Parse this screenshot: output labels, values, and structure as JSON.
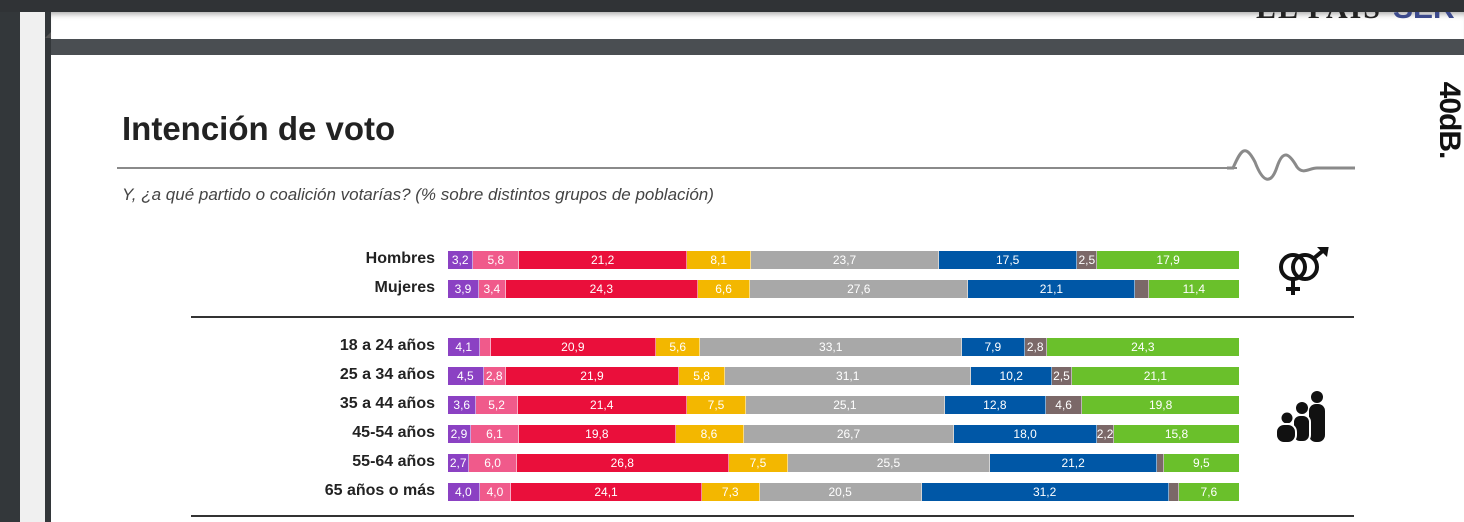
{
  "viewer": {
    "prev_page_logos": [
      "EL PAÍS",
      "SER"
    ]
  },
  "header": {
    "title": "Intención de voto",
    "subtitle": "Y, ¿a qué partido o coalición votarías? (% sobre distintos grupos de población)",
    "brand": "40dB."
  },
  "colors": {
    "purple": "#8b41c3",
    "pink": "#f05a8b",
    "red": "#ea0f3b",
    "yellow": "#f3b700",
    "gray": "#a8a8a8",
    "blue": "#0057a6",
    "brown": "#7b6868",
    "green": "#6ac02b"
  },
  "chart_data": {
    "type": "bar",
    "orientation": "horizontal-stacked",
    "title": "Intención de voto",
    "subtitle": "Y, ¿a qué partido o coalición votarías? (% sobre distintos grupos de población)",
    "xlabel": "",
    "ylabel": "",
    "xlim": [
      0,
      100
    ],
    "segment_colors": [
      "#8b41c3",
      "#f05a8b",
      "#ea0f3b",
      "#f3b700",
      "#a8a8a8",
      "#0057a6",
      "#7b6868",
      "#6ac02b"
    ],
    "groups": [
      {
        "name": "gender",
        "icon": "gender-icon",
        "rows": [
          {
            "label": "Hombres",
            "values": [
              3.2,
              5.8,
              21.2,
              8.1,
              23.7,
              17.5,
              2.5,
              17.9
            ],
            "labels": [
              "3,2",
              "5,8",
              "21,2",
              "8,1",
              "23,7",
              "17,5",
              "2,5",
              "17,9"
            ]
          },
          {
            "label": "Mujeres",
            "values": [
              3.9,
              3.4,
              24.3,
              6.6,
              27.6,
              21.1,
              1.7,
              11.4
            ],
            "labels": [
              "3,9",
              "3,4",
              "24,3",
              "6,6",
              "27,6",
              "21,1",
              "",
              "11,4"
            ]
          }
        ]
      },
      {
        "name": "age",
        "icon": "family-icon",
        "rows": [
          {
            "label": "18 a 24 años",
            "values": [
              4.1,
              1.3,
              20.9,
              5.6,
              33.1,
              7.9,
              2.8,
              24.3
            ],
            "labels": [
              "4,1",
              "",
              "20,9",
              "5,6",
              "33,1",
              "7,9",
              "2,8",
              "24,3"
            ]
          },
          {
            "label": "25 a 34 años",
            "values": [
              4.5,
              2.8,
              21.9,
              5.8,
              31.1,
              10.2,
              2.5,
              21.1
            ],
            "labels": [
              "4,5",
              "2,8",
              "21,9",
              "5,8",
              "31,1",
              "10,2",
              "2,5",
              "21,1"
            ]
          },
          {
            "label": "35 a 44 años",
            "values": [
              3.6,
              5.2,
              21.4,
              7.5,
              25.1,
              12.8,
              4.6,
              19.8
            ],
            "labels": [
              "3,6",
              "5,2",
              "21,4",
              "7,5",
              "25,1",
              "12,8",
              "4,6",
              "19,8"
            ]
          },
          {
            "label": "45-54 años",
            "values": [
              2.9,
              6.1,
              19.8,
              8.6,
              26.7,
              18.0,
              2.2,
              15.8
            ],
            "labels": [
              "2,9",
              "6,1",
              "19,8",
              "8,6",
              "26,7",
              "18,0",
              "2,2",
              "15,8"
            ]
          },
          {
            "label": "55-64 años",
            "values": [
              2.7,
              6.0,
              26.8,
              7.5,
              25.5,
              21.2,
              0.8,
              9.5
            ],
            "labels": [
              "2,7",
              "6,0",
              "26,8",
              "7,5",
              "25,5",
              "21,2",
              "",
              "9,5"
            ]
          },
          {
            "label": "65 años o más",
            "values": [
              4.0,
              4.0,
              24.1,
              7.3,
              20.5,
              31.2,
              1.3,
              7.6
            ],
            "labels": [
              "4,0",
              "4,0",
              "24,1",
              "7,3",
              "20,5",
              "31,2",
              "",
              "7,6"
            ]
          }
        ]
      }
    ]
  }
}
